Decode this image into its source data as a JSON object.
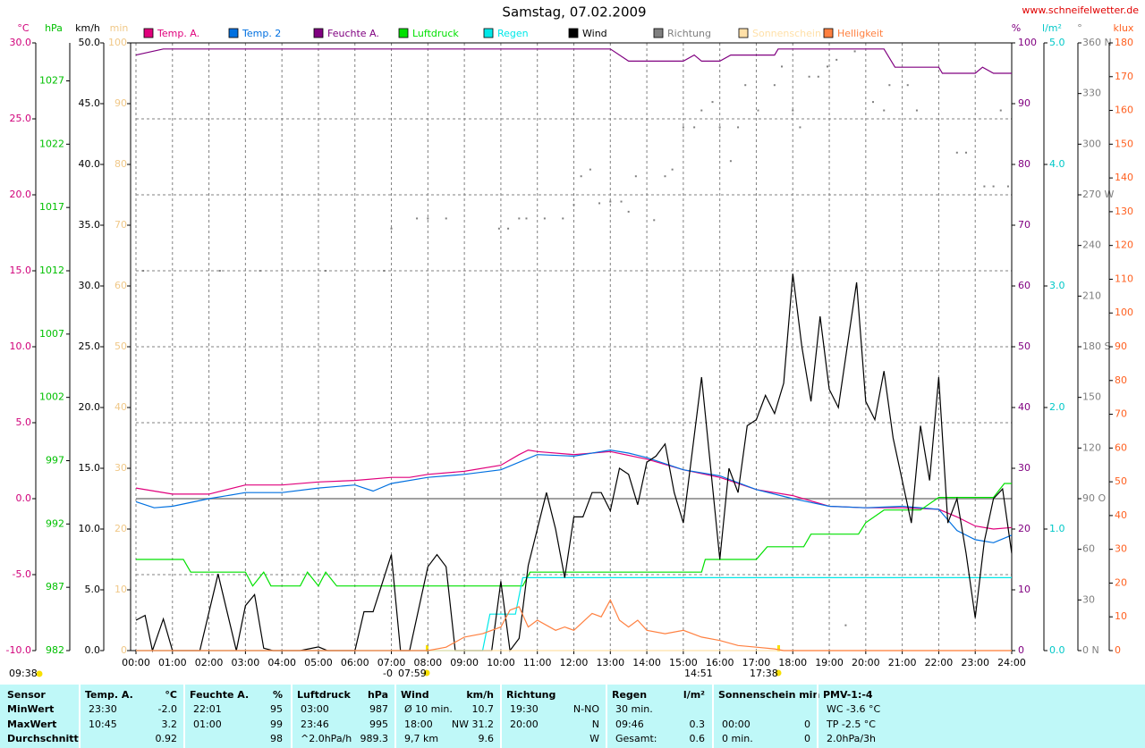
{
  "chart_data": {
    "type": "line",
    "title": "Samstag, 07.02.2009",
    "source": "www.schneifelwetter.de",
    "grid": true,
    "xlim": [
      0,
      24
    ],
    "xticks": [
      {
        "value": 0,
        "label": "00:00"
      },
      {
        "value": 1,
        "label": "01:00"
      },
      {
        "value": 2,
        "label": "02:00"
      },
      {
        "value": 3,
        "label": "03:00"
      },
      {
        "value": 4,
        "label": "04:00"
      },
      {
        "value": 5,
        "label": "05:00"
      },
      {
        "value": 6,
        "label": "06:00"
      },
      {
        "value": 7,
        "label": "07:00"
      },
      {
        "value": 8,
        "label": "08:00"
      },
      {
        "value": 9,
        "label": "09:00"
      },
      {
        "value": 10,
        "label": "10:00"
      },
      {
        "value": 11,
        "label": "11:00"
      },
      {
        "value": 12,
        "label": "12:00"
      },
      {
        "value": 13,
        "label": "13:00"
      },
      {
        "value": 14,
        "label": "14:00"
      },
      {
        "value": 15,
        "label": "15:00"
      },
      {
        "value": 16,
        "label": "16:00"
      },
      {
        "value": 17,
        "label": "17:00"
      },
      {
        "value": 18,
        "label": "18:00"
      },
      {
        "value": 19,
        "label": "19:00"
      },
      {
        "value": 20,
        "label": "20:00"
      },
      {
        "value": 21,
        "label": "21:00"
      },
      {
        "value": 22,
        "label": "22:00"
      },
      {
        "value": 23,
        "label": "23:00"
      },
      {
        "value": 24,
        "label": "24:00"
      }
    ],
    "axes": [
      {
        "unit": "°C",
        "color": "#d0007a",
        "lim": [
          -10,
          30
        ],
        "ticks": [
          {
            "value": -10,
            "label": "-10.0"
          },
          {
            "value": -5,
            "label": "-5.0"
          },
          {
            "value": 0,
            "label": "0.0"
          },
          {
            "value": 5,
            "label": "5.0"
          },
          {
            "value": 10,
            "label": "10.0"
          },
          {
            "value": 15,
            "label": "15.0"
          },
          {
            "value": 20,
            "label": "20.0"
          },
          {
            "value": 25,
            "label": "25.0"
          },
          {
            "value": 30,
            "label": "30.0"
          }
        ]
      },
      {
        "unit": "hPa",
        "color": "#00c000",
        "lim": [
          982,
          1030
        ],
        "ticks": [
          982,
          987,
          992,
          997,
          1002,
          1007,
          1012,
          1017,
          1022,
          1027
        ]
      },
      {
        "unit": "km/h",
        "color": "#000000",
        "lim": [
          0,
          50
        ],
        "ticks": [
          {
            "value": 0,
            "label": "0.0"
          },
          {
            "value": 5,
            "label": "5.0"
          },
          {
            "value": 10,
            "label": "10.0"
          },
          {
            "value": 15,
            "label": "15.0"
          },
          {
            "value": 20,
            "label": "20.0"
          },
          {
            "value": 25,
            "label": "25.0"
          },
          {
            "value": 30,
            "label": "30.0"
          },
          {
            "value": 35,
            "label": "35.0"
          },
          {
            "value": 40,
            "label": "40.0"
          },
          {
            "value": 45,
            "label": "45.0"
          },
          {
            "value": 50,
            "label": "50.0"
          }
        ]
      },
      {
        "unit": "min",
        "color": "#f0c888",
        "lim": [
          0,
          100
        ],
        "ticks": [
          0,
          10,
          20,
          30,
          40,
          50,
          60,
          70,
          80,
          90,
          100
        ]
      },
      {
        "unit": "%",
        "color": "#800080",
        "lim": [
          0,
          100
        ],
        "ticks": [
          0,
          10,
          20,
          30,
          40,
          50,
          60,
          70,
          80,
          90,
          100
        ]
      },
      {
        "unit": "l/m²",
        "color": "#00c8c8",
        "lim": [
          0,
          5
        ],
        "ticks": [
          {
            "value": 0,
            "label": "0.0"
          },
          {
            "value": 1,
            "label": "1.0"
          },
          {
            "value": 2,
            "label": "2.0"
          },
          {
            "value": 3,
            "label": "3.0"
          },
          {
            "value": 4,
            "label": "4.0"
          },
          {
            "value": 5,
            "label": "5.0"
          }
        ]
      },
      {
        "unit": "°",
        "color": "#808080",
        "lim": [
          0,
          360
        ],
        "ticks": [
          {
            "value": 0,
            "label": "0 N"
          },
          30,
          60,
          {
            "value": 90,
            "label": "90 O"
          },
          120,
          150,
          {
            "value": 180,
            "label": "180 S"
          },
          210,
          240,
          {
            "value": 270,
            "label": "270 W"
          },
          300,
          330,
          {
            "value": 360,
            "label": "360 N"
          }
        ]
      },
      {
        "unit": "klux",
        "color": "#ff6020",
        "lim": [
          0,
          180
        ],
        "ticks": [
          0,
          10,
          20,
          30,
          40,
          50,
          60,
          70,
          80,
          90,
          100,
          110,
          120,
          130,
          140,
          150,
          160,
          170,
          180
        ]
      }
    ],
    "series": [
      {
        "name": "Temp. A.",
        "color": "#e0007c",
        "axis": "°C",
        "x": [
          0,
          0.5,
          1,
          2,
          3,
          4,
          5,
          6,
          7,
          7.5,
          8,
          9,
          10,
          10.5,
          10.75,
          11,
          12,
          13,
          14,
          15,
          16,
          17,
          18,
          19,
          20,
          21,
          22,
          22.5,
          23,
          23.5,
          24
        ],
        "values": [
          0.7,
          0.5,
          0.3,
          0.3,
          0.9,
          0.9,
          1.1,
          1.2,
          1.4,
          1.4,
          1.6,
          1.8,
          2.2,
          2.9,
          3.2,
          3.1,
          2.9,
          3.1,
          2.6,
          1.9,
          1.4,
          0.6,
          0.2,
          -0.5,
          -0.6,
          -0.6,
          -0.7,
          -1.2,
          -1.8,
          -2.0,
          -1.9
        ]
      },
      {
        "name": "Temp. 2",
        "color": "#0070e0",
        "axis": "°C",
        "x": [
          0,
          0.5,
          1,
          2,
          3,
          4,
          5,
          6,
          6.5,
          7,
          8,
          9,
          10,
          11,
          12,
          13,
          13.5,
          14,
          15,
          16,
          17,
          18,
          19,
          20,
          21,
          22,
          22.5,
          23,
          23.5,
          24
        ],
        "values": [
          -0.2,
          -0.6,
          -0.5,
          0,
          0.4,
          0.4,
          0.7,
          0.9,
          0.5,
          1.0,
          1.4,
          1.6,
          1.9,
          2.9,
          2.8,
          3.2,
          3.0,
          2.7,
          1.9,
          1.5,
          0.6,
          0.0,
          -0.5,
          -0.6,
          -0.5,
          -0.7,
          -2.1,
          -2.7,
          -2.9,
          -2.4
        ]
      },
      {
        "name": "Feuchte A.",
        "color": "#800080",
        "axis": "%",
        "x": [
          0,
          0.75,
          13,
          13.5,
          15,
          15.3,
          15.5,
          16,
          16.3,
          17.5,
          17.6,
          20.5,
          20.8,
          22,
          22.1,
          23,
          23.2,
          23.5,
          24
        ],
        "values": [
          98,
          99,
          99,
          97,
          97,
          98,
          97,
          97,
          98,
          98,
          99,
          99,
          96,
          96,
          95,
          95,
          96,
          95,
          95
        ]
      },
      {
        "name": "Luftdruck",
        "color": "#00e000",
        "axis": "hPa",
        "x": [
          0,
          1.3,
          1.5,
          3,
          3.2,
          3.5,
          3.7,
          4.5,
          4.7,
          5,
          5.2,
          5.5,
          10.6,
          10.8,
          15.5,
          15.6,
          17,
          17.3,
          18.3,
          18.5,
          19.8,
          20,
          20.5,
          21.5,
          22,
          23.5,
          23.8,
          24
        ],
        "values": [
          989.2,
          989.2,
          988.2,
          988.2,
          987.1,
          988.2,
          987.1,
          987.1,
          988.2,
          987.1,
          988.2,
          987.1,
          987.1,
          988.2,
          988.2,
          989.2,
          989.2,
          990.2,
          990.2,
          991.2,
          991.2,
          992.1,
          993.1,
          993.1,
          994.1,
          994.1,
          995.2,
          995.2
        ]
      },
      {
        "name": "Regen",
        "color": "#00e8e8",
        "axis": "l/m²",
        "x": [
          0,
          9.5,
          9.7,
          10.4,
          10.6,
          24
        ],
        "values": [
          0,
          0,
          0.3,
          0.3,
          0.6,
          0.6
        ]
      },
      {
        "name": "Wind",
        "color": "#000000",
        "axis": "km/h",
        "x": [
          0,
          0.25,
          0.45,
          0.75,
          1,
          1.75,
          2.25,
          2.75,
          3,
          3.25,
          3.5,
          3.75,
          4.5,
          5,
          5.25,
          6,
          6.25,
          6.5,
          7,
          7.25,
          7.5,
          8,
          8.25,
          8.5,
          8.75,
          9.75,
          10,
          10.25,
          10.5,
          10.75,
          11,
          11.25,
          11.5,
          11.75,
          12,
          12.25,
          12.5,
          12.75,
          13,
          13.25,
          13.5,
          13.75,
          14,
          14.25,
          14.5,
          14.75,
          15,
          15.5,
          16,
          16.25,
          16.5,
          16.75,
          17,
          17.25,
          17.5,
          17.75,
          18,
          18.25,
          18.5,
          18.75,
          19,
          19.25,
          19.75,
          20,
          20.25,
          20.5,
          20.75,
          21,
          21.25,
          21.5,
          21.75,
          22,
          22.25,
          22.5,
          22.75,
          23,
          23.25,
          23.5,
          23.75,
          24
        ],
        "values": [
          2.5,
          2.9,
          0,
          2.6,
          0,
          0,
          6.3,
          0,
          3.7,
          4.6,
          0.2,
          0,
          0,
          0.3,
          0,
          0,
          3.2,
          3.2,
          7.9,
          0,
          0,
          6.9,
          7.9,
          6.9,
          0,
          0,
          5.7,
          0,
          1,
          7,
          10,
          13,
          10,
          6,
          11,
          11,
          13,
          13,
          11.5,
          15,
          14.5,
          12,
          15.5,
          16,
          17,
          13,
          10.5,
          22.5,
          7.5,
          15,
          13,
          18.5,
          19,
          21,
          19.5,
          22,
          31,
          25,
          20.5,
          27.5,
          21.5,
          20,
          30.3,
          20.5,
          19,
          23,
          17.5,
          14,
          10.5,
          18.5,
          14,
          22.5,
          10.5,
          12.5,
          8,
          2.7,
          9,
          12.5,
          13.3,
          8
        ]
      },
      {
        "name": "Richtung",
        "color": "#808080",
        "axis": "°",
        "type": "scatter",
        "x": [
          0.2,
          2.3,
          3.4,
          5.2,
          6.8,
          7.0,
          7.7,
          8.0,
          8.5,
          9.95,
          10.2,
          10.5,
          10.7,
          11.2,
          11.7,
          12,
          12.2,
          12.45,
          12.7,
          13.0,
          13.3,
          13.5,
          13.7,
          14.2,
          14.5,
          14.7,
          15.0,
          15.3,
          15.5,
          15.8,
          16.0,
          16.3,
          16.5,
          16.7,
          17.05,
          17.5,
          17.7,
          18.0,
          18.2,
          18.45,
          18.7,
          18.95,
          19.2,
          19.45,
          19.7,
          20.2,
          20.5,
          20.65,
          21.15,
          21.4,
          22.5,
          22.75,
          23.25,
          23.5,
          23.7,
          23.9
        ],
        "values": [
          225,
          225,
          225,
          225,
          225,
          250,
          256,
          256,
          256,
          250,
          250,
          256,
          256,
          256,
          256,
          264,
          281,
          285,
          265,
          266,
          266,
          260,
          281,
          255,
          281,
          285,
          310,
          310,
          320,
          325,
          310,
          290,
          310,
          335,
          320,
          335,
          346,
          320,
          310,
          340,
          340,
          346,
          350,
          15,
          355,
          325,
          320,
          335,
          335,
          320,
          295,
          295,
          275,
          275,
          320,
          275
        ]
      },
      {
        "name": "Sonnenschein",
        "color": "#ffe0a8",
        "axis": "min",
        "x": [
          0,
          24
        ],
        "values": [
          0,
          0
        ]
      },
      {
        "name": "Helligkeit",
        "color": "#ff8040",
        "axis": "klux",
        "x": [
          0,
          8,
          8.5,
          9,
          9.5,
          10,
          10.25,
          10.5,
          10.75,
          11,
          11.5,
          11.75,
          12,
          12.5,
          12.75,
          13,
          13.25,
          13.5,
          13.75,
          14,
          14.5,
          15,
          15.5,
          16,
          16.5,
          17,
          17.5,
          17.75,
          24
        ],
        "values": [
          0,
          0,
          1,
          4,
          5,
          7,
          12,
          13,
          7,
          9,
          6,
          7,
          6,
          11,
          10,
          15,
          9,
          7,
          9,
          6,
          5,
          6,
          4,
          3,
          1.5,
          1,
          0.5,
          0,
          0
        ]
      }
    ],
    "annotations": [
      "09:38",
      "-0",
      "07:59",
      "14:51",
      "17:38"
    ]
  },
  "table": {
    "row_labels": [
      "Sensor",
      "MinWert",
      "MaxWert",
      "Durchschnitt"
    ],
    "groups": [
      {
        "header": [
          "Temp. A.",
          "°C"
        ],
        "rows": [
          [
            "23:30",
            "-2.0"
          ],
          [
            "10:45",
            "3.2"
          ],
          [
            null,
            "0.92"
          ]
        ]
      },
      {
        "header": [
          "Feuchte A.",
          "%"
        ],
        "rows": [
          [
            "22:01",
            "95"
          ],
          [
            "01:00",
            "99"
          ],
          [
            null,
            "98"
          ]
        ]
      },
      {
        "header": [
          "Luftdruck",
          "hPa"
        ],
        "rows": [
          [
            "03:00",
            "987"
          ],
          [
            "23:46",
            "995"
          ],
          [
            "^2.0hPa/h",
            "989.3"
          ]
        ]
      },
      {
        "header": [
          "Wind",
          "km/h"
        ],
        "rows": [
          [
            "Ø 10 min.",
            "10.7"
          ],
          [
            "18:00",
            "NW 31.2"
          ],
          [
            "9,7 km",
            "9.6"
          ]
        ]
      },
      {
        "header": [
          "Richtung",
          null
        ],
        "rows": [
          [
            "19:30",
            "N-NO"
          ],
          [
            "20:00",
            "N"
          ],
          [
            null,
            "W"
          ]
        ]
      },
      {
        "header": [
          "Regen",
          "l/m²"
        ],
        "rows": [
          [
            "30 min.",
            null
          ],
          [
            "09:46",
            "0.3"
          ],
          [
            "Gesamt:",
            "0.6"
          ]
        ]
      },
      {
        "header": [
          "Sonnenschein min",
          null
        ],
        "rows": [
          [
            null,
            null
          ],
          [
            "00:00",
            "0"
          ],
          [
            "0 min.",
            "0"
          ]
        ]
      },
      {
        "header": [
          "PMV-1:-4",
          null
        ],
        "rows": [
          [
            "WC -3.6 °C",
            null
          ],
          [
            "TP -2.5 °C",
            null
          ],
          [
            "2.0hPa/3h",
            null
          ]
        ]
      }
    ]
  }
}
